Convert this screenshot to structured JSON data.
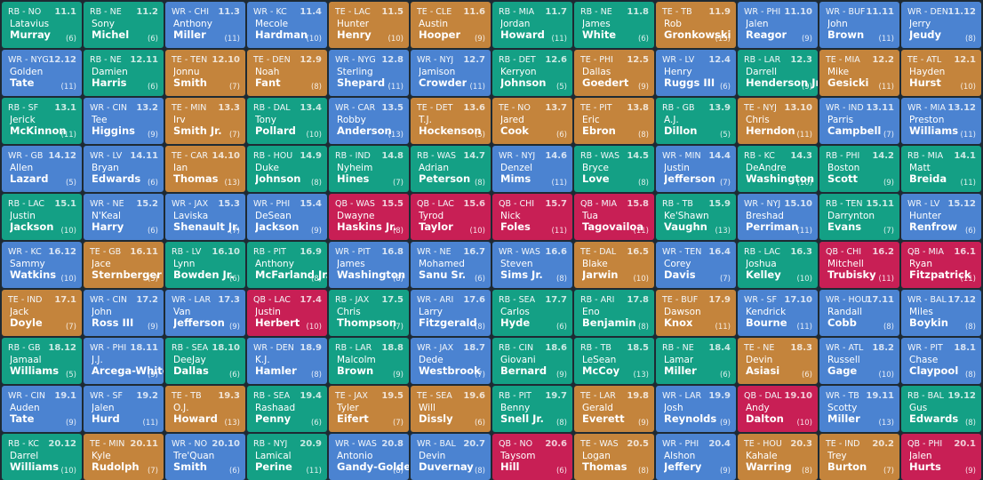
{
  "picks": [
    [
      "RB - NO",
      "11.1",
      "Latavius",
      "Murray",
      "(6)"
    ],
    [
      "RB - NE",
      "11.2",
      "Sony",
      "Michel",
      "(6)"
    ],
    [
      "WR - CHI",
      "11.3",
      "Anthony",
      "Miller",
      "(11)"
    ],
    [
      "WR - KC",
      "11.4",
      "Mecole",
      "Hardman",
      "(10)"
    ],
    [
      "TE - LAC",
      "11.5",
      "Hunter",
      "Henry",
      "(10)"
    ],
    [
      "TE - CLE",
      "11.6",
      "Austin",
      "Hooper",
      "(9)"
    ],
    [
      "RB - MIA",
      "11.7",
      "Jordan",
      "Howard",
      "(11)"
    ],
    [
      "RB - NE",
      "11.8",
      "James",
      "White",
      "(6)"
    ],
    [
      "TE - TB",
      "11.9",
      "Rob",
      "Gronkowski",
      "(13)"
    ],
    [
      "WR - PHI",
      "11.10",
      "Jalen",
      "Reagor",
      "(9)"
    ],
    [
      "WR - BUF",
      "11.11",
      "John",
      "Brown",
      "(11)"
    ],
    [
      "WR - DEN",
      "11.12",
      "Jerry",
      "Jeudy",
      "(8)"
    ],
    [
      "WR - NYG",
      "12.12",
      "Golden",
      "Tate",
      "(11)"
    ],
    [
      "RB - NE",
      "12.11",
      "Damien",
      "Harris",
      "(6)"
    ],
    [
      "TE - TEN",
      "12.10",
      "Jonnu",
      "Smith",
      "(7)"
    ],
    [
      "TE - DEN",
      "12.9",
      "Noah",
      "Fant",
      "(8)"
    ],
    [
      "WR - NYG",
      "12.8",
      "Sterling",
      "Shepard",
      "(11)"
    ],
    [
      "WR - NYJ",
      "12.7",
      "Jamison",
      "Crowder",
      "(11)"
    ],
    [
      "RB - DET",
      "12.6",
      "Kerryon",
      "Johnson",
      "(5)"
    ],
    [
      "TE - PHI",
      "12.5",
      "Dallas",
      "Goedert",
      "(9)"
    ],
    [
      "WR - LV",
      "12.4",
      "Henry",
      "Ruggs III",
      "(6)"
    ],
    [
      "RB - LAR",
      "12.3",
      "Darrell",
      "Henderson Jr.",
      "(9)"
    ],
    [
      "TE - MIA",
      "12.2",
      "Mike",
      "Gesicki",
      "(11)"
    ],
    [
      "TE - ATL",
      "12.1",
      "Hayden",
      "Hurst",
      "(10)"
    ],
    [
      "RB - SF",
      "13.1",
      "Jerick",
      "McKinnon",
      "(11)"
    ],
    [
      "WR - CIN",
      "13.2",
      "Tee",
      "Higgins",
      "(9)"
    ],
    [
      "TE - MIN",
      "13.3",
      "Irv",
      "Smith Jr.",
      "(7)"
    ],
    [
      "RB - DAL",
      "13.4",
      "Tony",
      "Pollard",
      "(10)"
    ],
    [
      "WR - CAR",
      "13.5",
      "Robby",
      "Anderson",
      "(13)"
    ],
    [
      "TE - DET",
      "13.6",
      "T.J.",
      "Hockenson",
      "(5)"
    ],
    [
      "TE - NO",
      "13.7",
      "Jared",
      "Cook",
      "(6)"
    ],
    [
      "TE - PIT",
      "13.8",
      "Eric",
      "Ebron",
      "(8)"
    ],
    [
      "RB - GB",
      "13.9",
      "A.J.",
      "Dillon",
      "(5)"
    ],
    [
      "TE - NYJ",
      "13.10",
      "Chris",
      "Herndon",
      "(11)"
    ],
    [
      "WR - IND",
      "13.11",
      "Parris",
      "Campbell",
      "(7)"
    ],
    [
      "WR - MIA",
      "13.12",
      "Preston",
      "Williams",
      "(11)"
    ],
    [
      "WR - GB",
      "14.12",
      "Allen",
      "Lazard",
      "(5)"
    ],
    [
      "WR - LV",
      "14.11",
      "Bryan",
      "Edwards",
      "(6)"
    ],
    [
      "TE - CAR",
      "14.10",
      "Ian",
      "Thomas",
      "(13)"
    ],
    [
      "RB - HOU",
      "14.9",
      "Duke",
      "Johnson",
      "(8)"
    ],
    [
      "RB - IND",
      "14.8",
      "Nyheim",
      "Hines",
      "(7)"
    ],
    [
      "RB - WAS",
      "14.7",
      "Adrian",
      "Peterson",
      "(8)"
    ],
    [
      "WR - NYJ",
      "14.6",
      "Denzel",
      "Mims",
      "(11)"
    ],
    [
      "RB - WAS",
      "14.5",
      "Bryce",
      "Love",
      "(8)"
    ],
    [
      "WR - MIN",
      "14.4",
      "Justin",
      "Jefferson",
      "(7)"
    ],
    [
      "RB - KC",
      "14.3",
      "DeAndre",
      "Washington",
      "(10)"
    ],
    [
      "RB - PHI",
      "14.2",
      "Boston",
      "Scott",
      "(9)"
    ],
    [
      "RB - MIA",
      "14.1",
      "Matt",
      "Breida",
      "(11)"
    ],
    [
      "RB - LAC",
      "15.1",
      "Justin",
      "Jackson",
      "(10)"
    ],
    [
      "WR - NE",
      "15.2",
      "N'Keal",
      "Harry",
      "(6)"
    ],
    [
      "WR - JAX",
      "15.3",
      "Laviska",
      "Shenault Jr.",
      "(7)"
    ],
    [
      "WR - PHI",
      "15.4",
      "DeSean",
      "Jackson",
      "(9)"
    ],
    [
      "QB - WAS",
      "15.5",
      "Dwayne",
      "Haskins Jr.",
      "(8)"
    ],
    [
      "QB - LAC",
      "15.6",
      "Tyrod",
      "Taylor",
      "(10)"
    ],
    [
      "QB - CHI",
      "15.7",
      "Nick",
      "Foles",
      "(11)"
    ],
    [
      "QB - MIA",
      "15.8",
      "Tua",
      "Tagovailoa",
      "(11)"
    ],
    [
      "RB - TB",
      "15.9",
      "Ke'Shawn",
      "Vaughn",
      "(13)"
    ],
    [
      "WR - NYJ",
      "15.10",
      "Breshad",
      "Perriman",
      "(11)"
    ],
    [
      "RB - TEN",
      "15.11",
      "Darrynton",
      "Evans",
      "(7)"
    ],
    [
      "WR - LV",
      "15.12",
      "Hunter",
      "Renfrow",
      "(6)"
    ],
    [
      "WR - KC",
      "16.12",
      "Sammy",
      "Watkins",
      "(10)"
    ],
    [
      "TE - GB",
      "16.11",
      "Jace",
      "Sternberger",
      "(5)"
    ],
    [
      "RB - LV",
      "16.10",
      "Lynn",
      "Bowden Jr.",
      "(6)"
    ],
    [
      "RB - PIT",
      "16.9",
      "Anthony",
      "McFarland Jr.",
      "(8)"
    ],
    [
      "WR - PIT",
      "16.8",
      "James",
      "Washington",
      "(8)"
    ],
    [
      "WR - NE",
      "16.7",
      "Mohamed",
      "Sanu Sr.",
      "(6)"
    ],
    [
      "WR - WAS",
      "16.6",
      "Steven",
      "Sims Jr.",
      "(8)"
    ],
    [
      "TE - DAL",
      "16.5",
      "Blake",
      "Jarwin",
      "(10)"
    ],
    [
      "WR - TEN",
      "16.4",
      "Corey",
      "Davis",
      "(7)"
    ],
    [
      "RB - LAC",
      "16.3",
      "Joshua",
      "Kelley",
      "(10)"
    ],
    [
      "QB - CHI",
      "16.2",
      "Mitchell",
      "Trubisky",
      "(11)"
    ],
    [
      "QB - MIA",
      "16.1",
      "Ryan",
      "Fitzpatrick",
      "(11)"
    ],
    [
      "TE - IND",
      "17.1",
      "Jack",
      "Doyle",
      "(7)"
    ],
    [
      "WR - CIN",
      "17.2",
      "John",
      "Ross III",
      "(9)"
    ],
    [
      "WR - LAR",
      "17.3",
      "Van",
      "Jefferson",
      "(9)"
    ],
    [
      "QB - LAC",
      "17.4",
      "Justin",
      "Herbert",
      "(10)"
    ],
    [
      "RB - JAX",
      "17.5",
      "Chris",
      "Thompson",
      "(7)"
    ],
    [
      "WR - ARI",
      "17.6",
      "Larry",
      "Fitzgerald",
      "(8)"
    ],
    [
      "RB - SEA",
      "17.7",
      "Carlos",
      "Hyde",
      "(6)"
    ],
    [
      "RB - ARI",
      "17.8",
      "Eno",
      "Benjamin",
      "(8)"
    ],
    [
      "TE - BUF",
      "17.9",
      "Dawson",
      "Knox",
      "(11)"
    ],
    [
      "WR - SF",
      "17.10",
      "Kendrick",
      "Bourne",
      "(11)"
    ],
    [
      "WR - HOU",
      "17.11",
      "Randall",
      "Cobb",
      "(8)"
    ],
    [
      "WR - BAL",
      "17.12",
      "Miles",
      "Boykin",
      "(8)"
    ],
    [
      "RB - GB",
      "18.12",
      "Jamaal",
      "Williams",
      "(5)"
    ],
    [
      "WR - PHI",
      "18.11",
      "J.J.",
      "Arcega-Whiteside",
      "(9)"
    ],
    [
      "RB - SEA",
      "18.10",
      "DeeJay",
      "Dallas",
      "(6)"
    ],
    [
      "WR - DEN",
      "18.9",
      "K.J.",
      "Hamler",
      "(8)"
    ],
    [
      "RB - LAR",
      "18.8",
      "Malcolm",
      "Brown",
      "(9)"
    ],
    [
      "WR - JAX",
      "18.7",
      "Dede",
      "Westbrook",
      "(7)"
    ],
    [
      "RB - CIN",
      "18.6",
      "Giovani",
      "Bernard",
      "(9)"
    ],
    [
      "RB - TB",
      "18.5",
      "LeSean",
      "McCoy",
      "(13)"
    ],
    [
      "RB - NE",
      "18.4",
      "Lamar",
      "Miller",
      "(6)"
    ],
    [
      "TE - NE",
      "18.3",
      "Devin",
      "Asiasi",
      "(6)"
    ],
    [
      "WR - ATL",
      "18.2",
      "Russell",
      "Gage",
      "(10)"
    ],
    [
      "WR - PIT",
      "18.1",
      "Chase",
      "Claypool",
      "(8)"
    ],
    [
      "WR - CIN",
      "19.1",
      "Auden",
      "Tate",
      "(9)"
    ],
    [
      "WR - SF",
      "19.2",
      "Jalen",
      "Hurd",
      "(11)"
    ],
    [
      "TE - TB",
      "19.3",
      "O.J.",
      "Howard",
      "(13)"
    ],
    [
      "RB - SEA",
      "19.4",
      "Rashaad",
      "Penny",
      "(6)"
    ],
    [
      "TE - JAX",
      "19.5",
      "Tyler",
      "Eifert",
      "(7)"
    ],
    [
      "TE - SEA",
      "19.6",
      "Will",
      "Dissly",
      "(6)"
    ],
    [
      "RB - PIT",
      "19.7",
      "Benny",
      "Snell Jr.",
      "(8)"
    ],
    [
      "TE - LAR",
      "19.8",
      "Gerald",
      "Everett",
      "(9)"
    ],
    [
      "WR - LAR",
      "19.9",
      "Josh",
      "Reynolds",
      "(9)"
    ],
    [
      "QB - DAL",
      "19.10",
      "Andy",
      "Dalton",
      "(10)"
    ],
    [
      "WR - TB",
      "19.11",
      "Scotty",
      "Miller",
      "(13)"
    ],
    [
      "RB - BAL",
      "19.12",
      "Gus",
      "Edwards",
      "(8)"
    ],
    [
      "RB - KC",
      "20.12",
      "Darrel",
      "Williams",
      "(10)"
    ],
    [
      "TE - MIN",
      "20.11",
      "Kyle",
      "Rudolph",
      "(7)"
    ],
    [
      "WR - NO",
      "20.10",
      "Tre'Quan",
      "Smith",
      "(6)"
    ],
    [
      "RB - NYJ",
      "20.9",
      "Lamical",
      "Perine",
      "(11)"
    ],
    [
      "WR - WAS",
      "20.8",
      "Antonio",
      "Gandy-Golden",
      "(8)"
    ],
    [
      "WR - BAL",
      "20.7",
      "Devin",
      "Duvernay",
      "(8)"
    ],
    [
      "QB - NO",
      "20.6",
      "Taysom",
      "Hill",
      "(6)"
    ],
    [
      "TE - WAS",
      "20.5",
      "Logan",
      "Thomas",
      "(8)"
    ],
    [
      "WR - PHI",
      "20.4",
      "Alshon",
      "Jeffery",
      "(9)"
    ],
    [
      "TE - HOU",
      "20.3",
      "Kahale",
      "Warring",
      "(8)"
    ],
    [
      "TE - IND",
      "20.2",
      "Trey",
      "Burton",
      "(7)"
    ],
    [
      "QB - PHI",
      "20.1",
      "Jalen",
      "Hurts",
      "(9)"
    ]
  ],
  "colors": {
    "RB": "#14a085",
    "WR": "#4b83d1",
    "TE": "#c4843c",
    "QB": "#c81f55"
  }
}
